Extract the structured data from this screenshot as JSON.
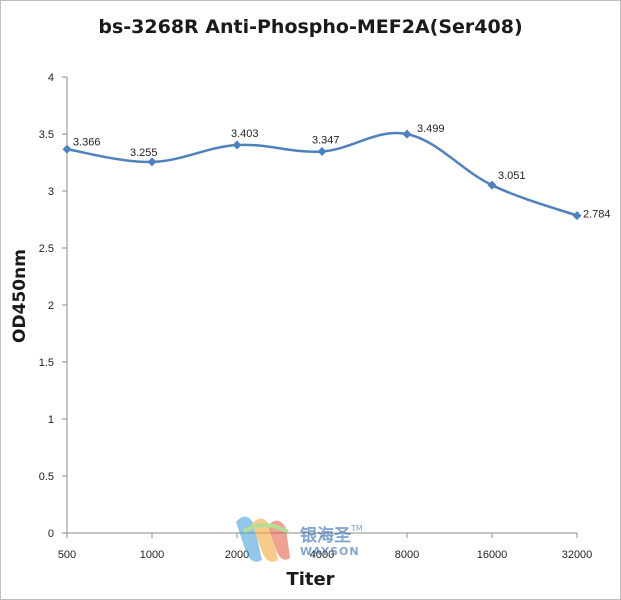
{
  "chart_data": {
    "type": "line",
    "title": "bs-3268R Anti-Phospho-MEF2A(Ser408)",
    "xlabel": "Titer",
    "ylabel": "OD450nm",
    "categories": [
      "500",
      "1000",
      "2000",
      "4000",
      "8000",
      "16000",
      "32000"
    ],
    "series": [
      {
        "values": [
          3.366,
          3.255,
          3.403,
          3.347,
          3.499,
          3.051,
          2.784
        ]
      }
    ],
    "data_labels": [
      "3.366",
      "3.255",
      "3.403",
      "3.347",
      "3.499",
      "3.051",
      "2.784"
    ],
    "ylim": [
      0,
      4
    ],
    "yticks": [
      "0",
      "0.5",
      "1",
      "1.5",
      "2",
      "2.5",
      "3",
      "3.5",
      "4"
    ],
    "grid": false,
    "line_color": "#4f81bd",
    "marker": "diamond"
  },
  "watermark": {
    "logo": "wayson-logo",
    "text_cn": "银海圣",
    "trademark": "TM",
    "text_en": "WAYSON"
  }
}
